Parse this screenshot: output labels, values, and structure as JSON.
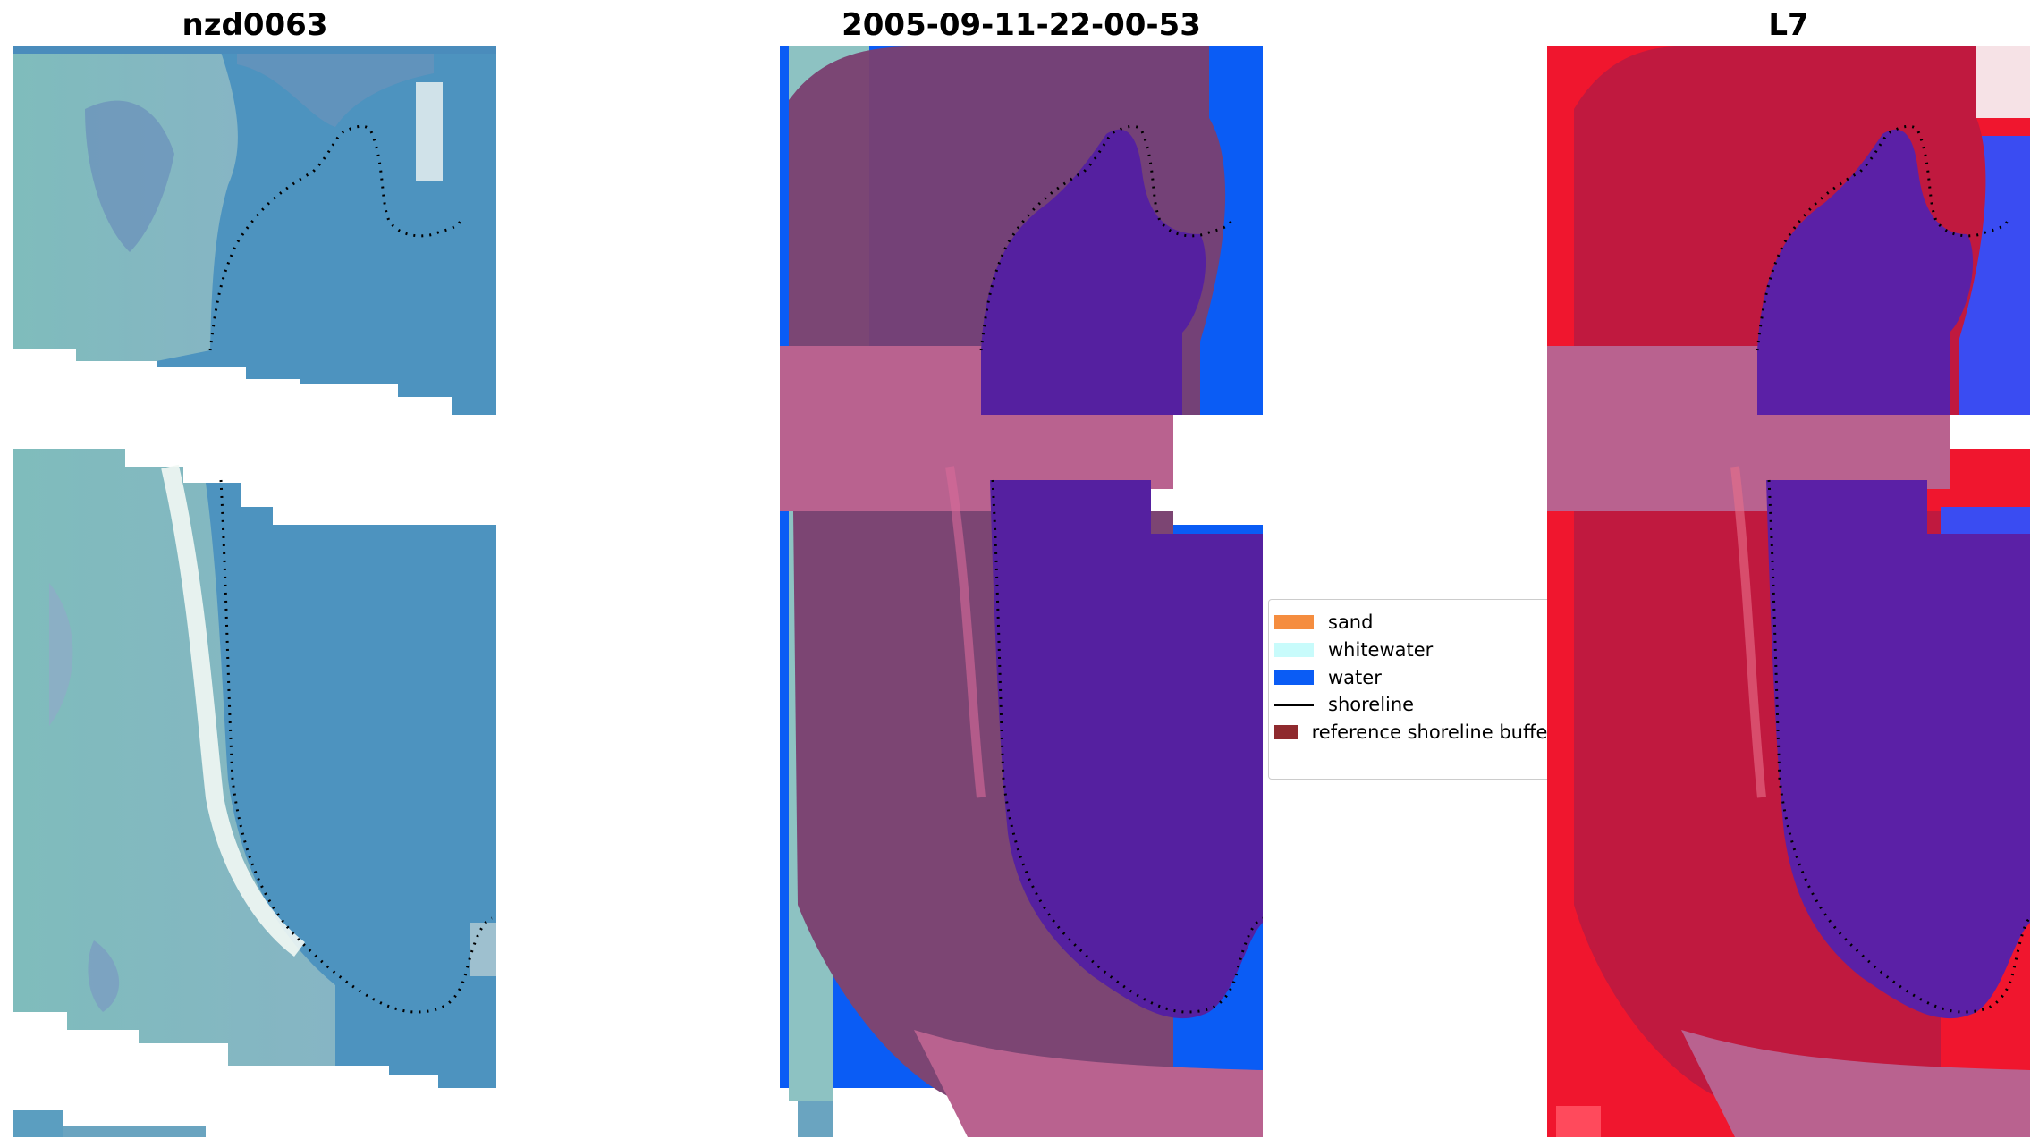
{
  "panels": {
    "left": {
      "title": "nzd0063"
    },
    "middle": {
      "title": "2005-09-11-22-00-53"
    },
    "right": {
      "title": "L7"
    }
  },
  "legend": {
    "items": [
      {
        "label": "sand",
        "color": "#f58d3f",
        "kind": "patch"
      },
      {
        "label": "whitewater",
        "color": "#c8fbfb",
        "kind": "patch"
      },
      {
        "label": "water",
        "color": "#0a5cf5",
        "kind": "patch"
      },
      {
        "label": "shoreline",
        "color": "#000000",
        "kind": "line"
      },
      {
        "label": "reference shoreline buffer",
        "color": "#8f2a2e",
        "kind": "patch"
      }
    ]
  },
  "colors": {
    "water_rgb": "#4d93bf",
    "land_rgb": "#7fbcbc",
    "water_class": "#0a5cf5",
    "buffer_overlay": "#b2426f",
    "ir_land": "#c0193f",
    "ir_water": "#5b20a6",
    "ir_sea": "#3a4cf2"
  }
}
